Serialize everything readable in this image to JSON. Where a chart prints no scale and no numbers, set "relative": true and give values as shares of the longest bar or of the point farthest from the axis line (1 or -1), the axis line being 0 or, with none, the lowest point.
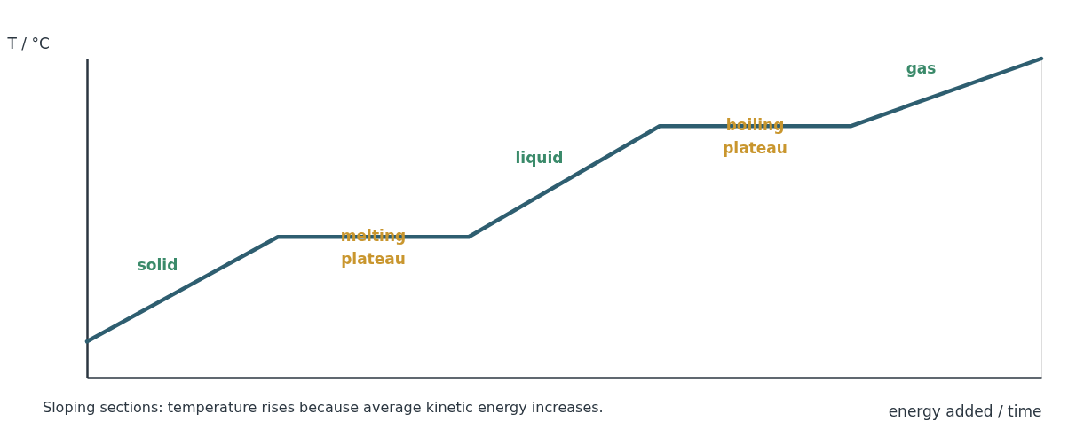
{
  "chart_data": {
    "type": "line",
    "relative": true,
    "xlabel": "energy added / time",
    "ylabel": "T / °C",
    "categories": [
      null,
      null,
      null,
      null,
      null,
      null
    ],
    "series": [
      {
        "color": "#2e5e70",
        "values": [
          0.113,
          0.441,
          0.441,
          0.788,
          0.788,
          1
        ]
      }
    ],
    "annotations": [
      "solid",
      "melting\nplateau",
      "liquid",
      "boiling\nplateau",
      "gas",
      "Sloping sections: temperature rises because average kinetic energy increases."
    ],
    "grid": false,
    "legend": false,
    "marker": "none",
    "line_style": "solid",
    "tick_labels": false
  }
}
